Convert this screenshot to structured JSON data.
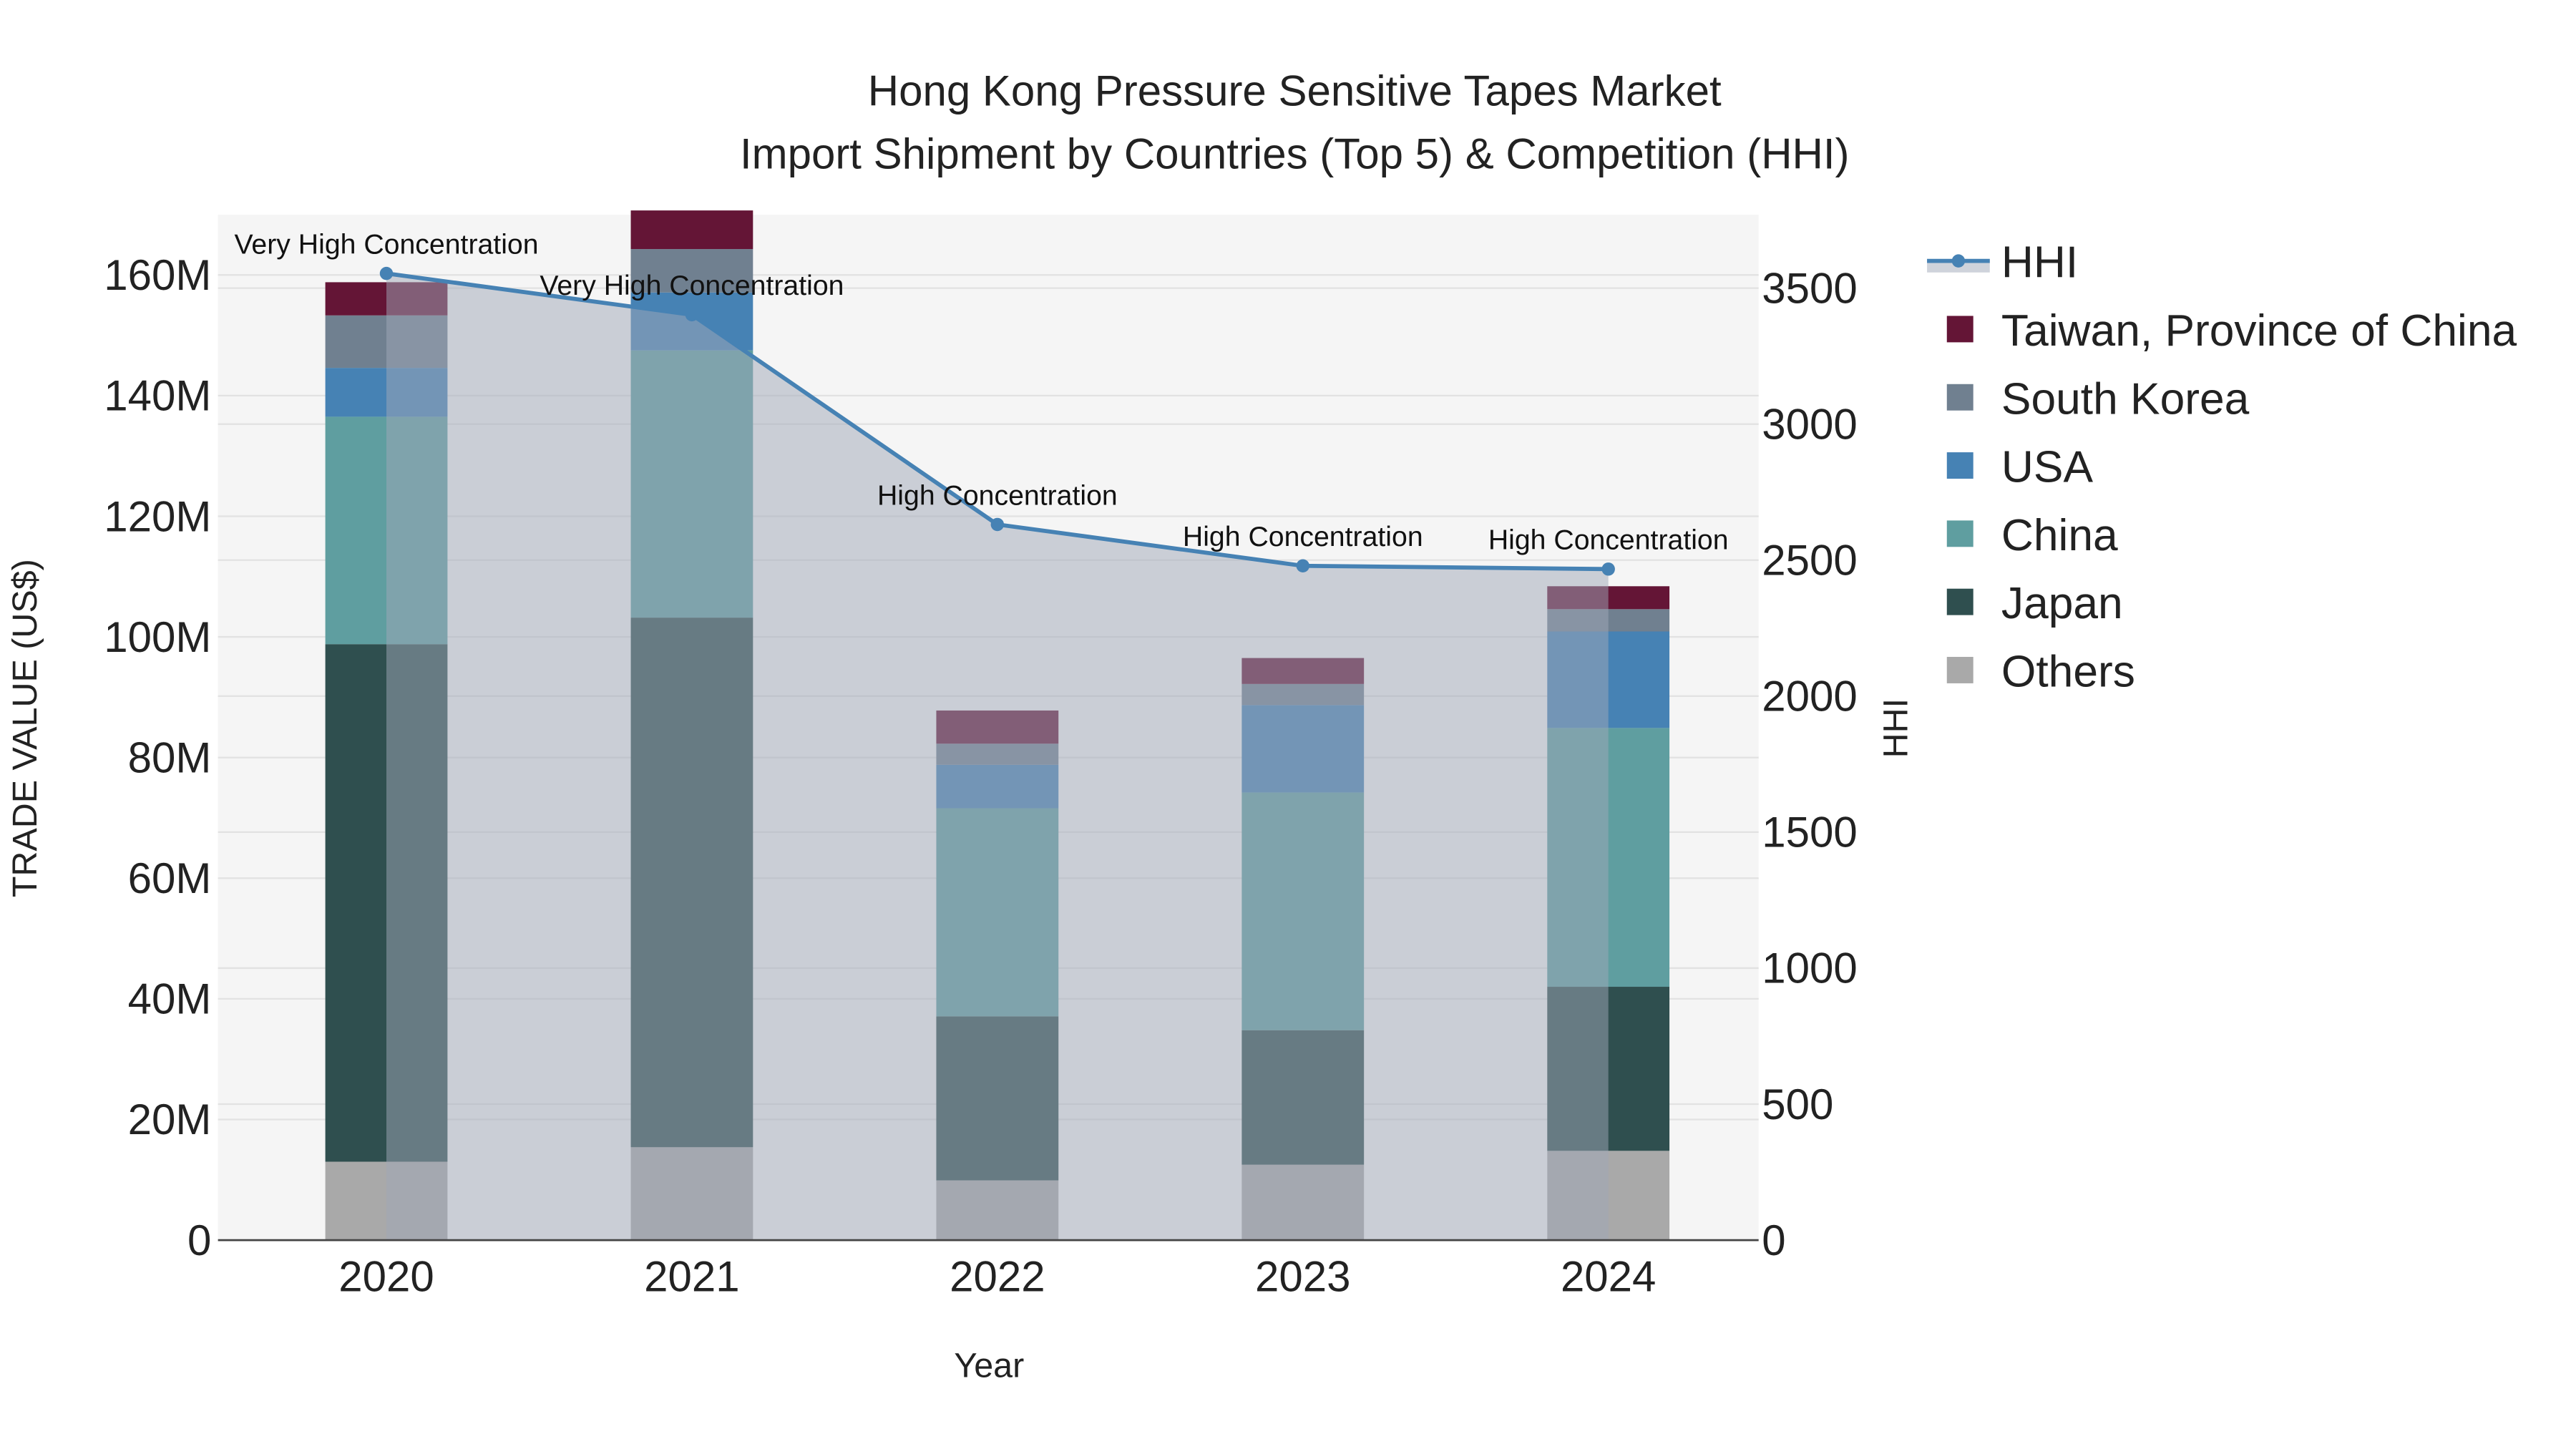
{
  "chart_data": {
    "type": "bar",
    "title_line1": "Hong Kong Pressure Sensitive Tapes Market",
    "title_line2": "Import Shipment by Countries (Top 5) & Competition (HHI)",
    "xlabel": "Year",
    "ylabel": "TRADE VALUE (US$)",
    "y2label": "HHI",
    "categories": [
      "2020",
      "2021",
      "2022",
      "2023",
      "2024"
    ],
    "ylim": [
      0,
      170
    ],
    "y_unit": "M",
    "yticks": [
      0,
      20,
      40,
      60,
      80,
      100,
      120,
      140,
      160
    ],
    "ytick_labels": [
      "0",
      "20M",
      "40M",
      "60M",
      "80M",
      "100M",
      "120M",
      "140M",
      "160M"
    ],
    "y2lim": [
      0,
      3770
    ],
    "y2ticks": [
      0,
      500,
      1000,
      1500,
      2000,
      2500,
      3000,
      3500
    ],
    "y2tick_labels": [
      "0",
      "500",
      "1000",
      "1500",
      "2000",
      "2500",
      "3000",
      "3500"
    ],
    "series": [
      {
        "name": "Others",
        "color": "#a9a9a9",
        "values": [
          13.0,
          15.4,
          9.9,
          12.5,
          14.8
        ]
      },
      {
        "name": "Japan",
        "color": "#2f4f4f",
        "values": [
          85.8,
          87.8,
          27.2,
          22.3,
          27.2
        ]
      },
      {
        "name": "China",
        "color": "#5f9ea0",
        "values": [
          37.7,
          44.3,
          34.5,
          39.4,
          42.9
        ]
      },
      {
        "name": "USA",
        "color": "#4682b4",
        "values": [
          8.1,
          9.6,
          7.2,
          14.5,
          16.0
        ]
      },
      {
        "name": "South Korea",
        "color": "#708090",
        "values": [
          8.7,
          7.2,
          3.5,
          3.5,
          3.7
        ]
      },
      {
        "name": "Taiwan, Province of China",
        "color": "#641536",
        "values": [
          5.5,
          6.4,
          5.5,
          4.3,
          3.8
        ]
      }
    ],
    "hhi": {
      "name": "HHI",
      "color": "#4682b4",
      "values": [
        3554,
        3402,
        2631,
        2479,
        2467
      ],
      "annotations": [
        "Very High Concentration",
        "Very High Concentration",
        "High Concentration",
        "High Concentration",
        "High Concentration"
      ]
    },
    "legend_order": [
      "HHI",
      "Taiwan, Province of China",
      "South Korea",
      "USA",
      "China",
      "Japan",
      "Others"
    ],
    "legend_position": "right",
    "grid": true
  }
}
